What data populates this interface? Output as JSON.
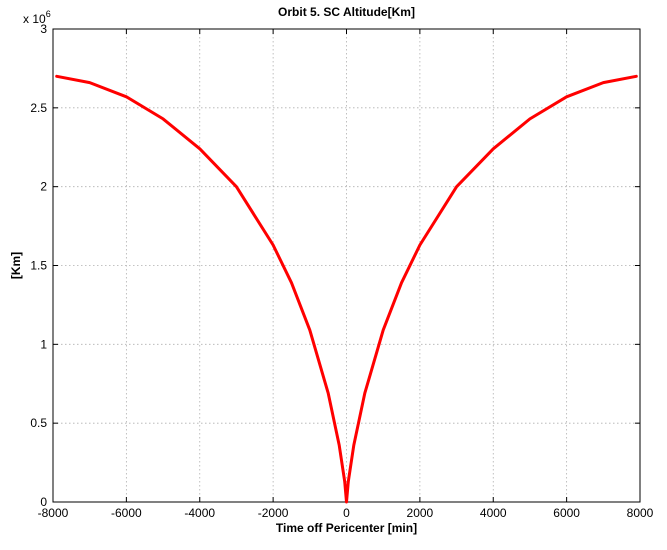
{
  "chart_data": {
    "type": "line",
    "title": "Orbit 5. SC Altitude[Km]",
    "xlabel": "Time off Pericenter [min]",
    "ylabel": "[Km]",
    "y_multiplier_label": "x 10",
    "y_multiplier_exponent": "6",
    "xlim": [
      -8000,
      8000
    ],
    "ylim": [
      0,
      3
    ],
    "y_scale_factor": 1000000,
    "xticks": [
      -8000,
      -6000,
      -4000,
      -2000,
      0,
      2000,
      4000,
      6000,
      8000
    ],
    "yticks": [
      0,
      0.5,
      1,
      1.5,
      2,
      2.5,
      3
    ],
    "xtick_labels": [
      "-8000",
      "-6000",
      "-4000",
      "-2000",
      "0",
      "2000",
      "4000",
      "6000",
      "8000"
    ],
    "ytick_labels": [
      "0",
      "0.5",
      "1",
      "1.5",
      "2",
      "2.5",
      "3"
    ],
    "grid": true,
    "series": [
      {
        "color": "#ff0000",
        "x": [
          -7900,
          -7000,
          -6000,
          -5000,
          -4000,
          -3000,
          -2000,
          -1500,
          -1000,
          -500,
          -200,
          -50,
          0,
          50,
          200,
          500,
          1000,
          1500,
          2000,
          3000,
          4000,
          5000,
          6000,
          7000,
          7900
        ],
        "y": [
          2.7,
          2.66,
          2.57,
          2.43,
          2.24,
          2.0,
          1.63,
          1.39,
          1.09,
          0.69,
          0.36,
          0.13,
          0.0,
          0.13,
          0.36,
          0.69,
          1.09,
          1.39,
          1.63,
          2.0,
          2.24,
          2.43,
          2.57,
          2.66,
          2.7
        ]
      }
    ]
  }
}
